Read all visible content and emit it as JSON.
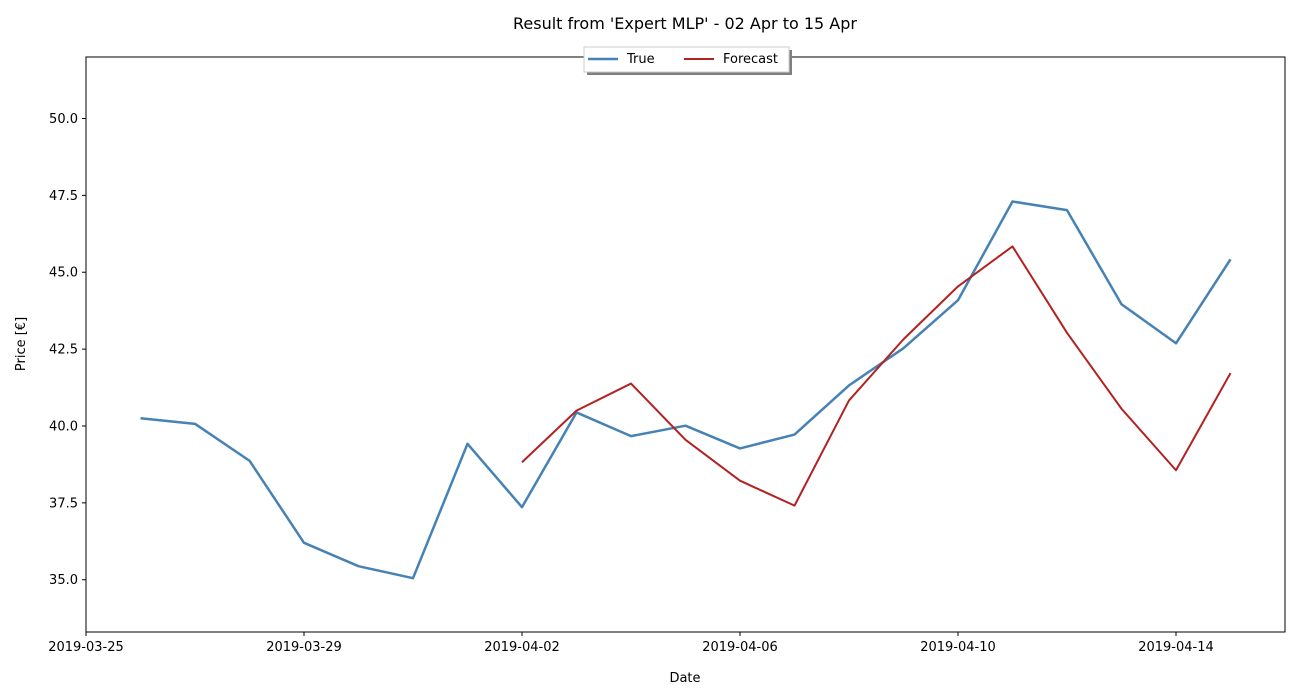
{
  "chart_data": {
    "type": "line",
    "title": "Result from 'Expert MLP' - 02 Apr to 15 Apr",
    "xlabel": "Date",
    "ylabel": "Price [€]",
    "x_tick_labels": [
      "2019-03-25",
      "2019-03-29",
      "2019-04-02",
      "2019-04-06",
      "2019-04-10",
      "2019-04-14"
    ],
    "x_ticks": [
      "2019-03-25",
      "2019-03-29",
      "2019-04-02",
      "2019-04-06",
      "2019-04-10",
      "2019-04-14"
    ],
    "y_tick_labels": [
      "35.0",
      "37.5",
      "40.0",
      "42.5",
      "45.0",
      "47.5",
      "50.0"
    ],
    "y_ticks": [
      35.0,
      37.5,
      40.0,
      42.5,
      45.0,
      47.5,
      50.0
    ],
    "xlim": [
      "2019-03-25",
      "2019-04-16"
    ],
    "ylim": [
      33.3,
      52.0
    ],
    "grid": false,
    "legend_position": "top-center",
    "series": [
      {
        "name": "True",
        "color": "#4682b4",
        "x": [
          "2019-03-26",
          "2019-03-27",
          "2019-03-28",
          "2019-03-29",
          "2019-03-30",
          "2019-03-31",
          "2019-04-01",
          "2019-04-02",
          "2019-04-03",
          "2019-04-04",
          "2019-04-05",
          "2019-04-06",
          "2019-04-07",
          "2019-04-08",
          "2019-04-09",
          "2019-04-10",
          "2019-04-11",
          "2019-04-12",
          "2019-04-13",
          "2019-04-14",
          "2019-04-15"
        ],
        "values": [
          40.25,
          40.07,
          38.87,
          36.2,
          35.44,
          35.05,
          39.42,
          37.36,
          40.44,
          39.67,
          40.01,
          39.27,
          39.72,
          41.32,
          42.53,
          44.09,
          47.3,
          47.02,
          43.96,
          42.69,
          45.42
        ]
      },
      {
        "name": "Forecast",
        "color": "#b22222",
        "x": [
          "2019-04-02",
          "2019-04-03",
          "2019-04-04",
          "2019-04-05",
          "2019-04-06",
          "2019-04-07",
          "2019-04-08",
          "2019-04-09",
          "2019-04-10",
          "2019-04-11",
          "2019-04-12",
          "2019-04-13",
          "2019-04-14",
          "2019-04-15"
        ],
        "values": [
          38.82,
          40.5,
          41.38,
          39.55,
          38.22,
          37.41,
          40.83,
          42.82,
          44.54,
          45.84,
          43.03,
          40.56,
          38.56,
          41.72
        ]
      }
    ]
  }
}
